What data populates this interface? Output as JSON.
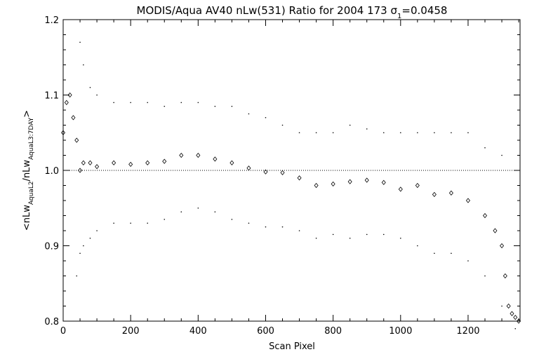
{
  "chart_data": {
    "type": "scatter",
    "title": "MODIS/Aqua AV40 nLw(531) Ratio for 2004 173 σ",
    "title_subscript": "1",
    "title_suffix": "=0.0458",
    "xlabel": "Scan Pixel",
    "ylabel": {
      "prefix": "<nLw",
      "sub1": "AquaL2",
      "mid": "/nLw",
      "sub2": "AquaL3:7DAY",
      "suffix": ">"
    },
    "xlim": [
      0,
      1354
    ],
    "ylim": [
      0.8,
      1.2
    ],
    "x_ticks": [
      0,
      200,
      400,
      600,
      800,
      1000,
      1200
    ],
    "x_tick_labels": [
      "0",
      "200",
      "400",
      "600",
      "800",
      "1000",
      "1200"
    ],
    "y_ticks": [
      0.8,
      0.9,
      1.0,
      1.1,
      1.2
    ],
    "y_tick_labels": [
      "0.8",
      "0.9",
      "1.0",
      "1.1",
      "1.2"
    ],
    "reference_line": 1.0,
    "series": [
      {
        "role": "mean",
        "marker": "diamond",
        "x": [
          0,
          10,
          20,
          30,
          40,
          50,
          60,
          80,
          100,
          150,
          200,
          250,
          300,
          350,
          400,
          450,
          500,
          550,
          600,
          650,
          700,
          750,
          800,
          850,
          900,
          950,
          1000,
          1050,
          1100,
          1150,
          1200,
          1250,
          1280,
          1300,
          1310,
          1320,
          1330,
          1340,
          1350
        ],
        "y": [
          1.05,
          1.09,
          1.1,
          1.07,
          1.04,
          1.0,
          1.01,
          1.01,
          1.005,
          1.01,
          1.008,
          1.01,
          1.012,
          1.02,
          1.02,
          1.015,
          1.01,
          1.003,
          0.998,
          0.997,
          0.99,
          0.98,
          0.982,
          0.985,
          0.987,
          0.984,
          0.975,
          0.98,
          0.968,
          0.97,
          0.96,
          0.94,
          0.92,
          0.9,
          0.86,
          0.82,
          0.81,
          0.805,
          0.8
        ]
      },
      {
        "role": "upper_bound",
        "marker": "dot",
        "x": [
          50,
          60,
          80,
          100,
          150,
          200,
          250,
          300,
          350,
          400,
          450,
          500,
          550,
          600,
          650,
          700,
          750,
          800,
          850,
          900,
          950,
          1000,
          1050,
          1100,
          1150,
          1200,
          1250,
          1300
        ],
        "y": [
          1.17,
          1.14,
          1.11,
          1.1,
          1.09,
          1.09,
          1.09,
          1.085,
          1.09,
          1.09,
          1.085,
          1.085,
          1.075,
          1.07,
          1.06,
          1.05,
          1.05,
          1.05,
          1.06,
          1.055,
          1.05,
          1.05,
          1.05,
          1.05,
          1.05,
          1.05,
          1.03,
          1.02
        ]
      },
      {
        "role": "lower_bound",
        "marker": "dot",
        "x": [
          40,
          50,
          60,
          80,
          100,
          150,
          200,
          250,
          300,
          350,
          400,
          450,
          500,
          550,
          600,
          650,
          700,
          750,
          800,
          850,
          900,
          950,
          1000,
          1050,
          1100,
          1150,
          1200,
          1250,
          1300,
          1340
        ],
        "y": [
          0.86,
          0.89,
          0.9,
          0.91,
          0.92,
          0.93,
          0.93,
          0.93,
          0.935,
          0.945,
          0.95,
          0.945,
          0.935,
          0.93,
          0.925,
          0.925,
          0.92,
          0.91,
          0.915,
          0.91,
          0.915,
          0.915,
          0.91,
          0.9,
          0.89,
          0.89,
          0.88,
          0.86,
          0.82,
          0.79
        ]
      }
    ]
  }
}
